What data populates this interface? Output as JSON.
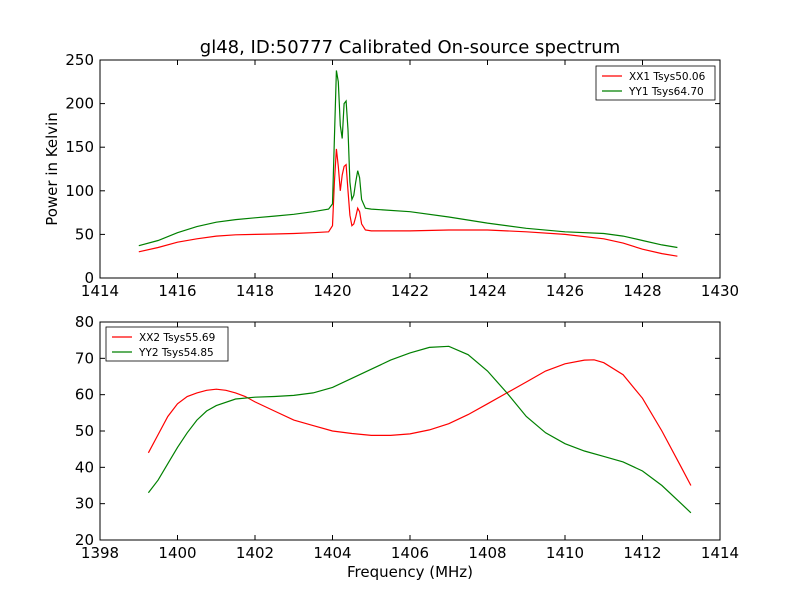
{
  "chart_data": [
    {
      "type": "line",
      "title": "gl48, ID:50777 Calibrated On-source spectrum",
      "ylabel": "Power in Kelvin",
      "xlabel": "",
      "xlim": [
        1414,
        1430
      ],
      "ylim": [
        0,
        250
      ],
      "xticks": [
        1414,
        1416,
        1418,
        1420,
        1422,
        1424,
        1426,
        1428,
        1430
      ],
      "yticks": [
        0,
        50,
        100,
        150,
        200,
        250
      ],
      "legend_position": "top-right",
      "series": [
        {
          "name": "XX1 Tsys50.06",
          "color": "#ff0000",
          "points": [
            [
              1415.0,
              30
            ],
            [
              1415.5,
              35
            ],
            [
              1416.0,
              41
            ],
            [
              1416.5,
              45
            ],
            [
              1417.0,
              48
            ],
            [
              1417.5,
              49.5
            ],
            [
              1418.0,
              50
            ],
            [
              1418.5,
              50.5
            ],
            [
              1419.0,
              51
            ],
            [
              1419.5,
              52
            ],
            [
              1419.9,
              53
            ],
            [
              1420.0,
              60
            ],
            [
              1420.05,
              110
            ],
            [
              1420.1,
              148
            ],
            [
              1420.15,
              128
            ],
            [
              1420.2,
              100
            ],
            [
              1420.25,
              118
            ],
            [
              1420.3,
              128
            ],
            [
              1420.35,
              130
            ],
            [
              1420.4,
              100
            ],
            [
              1420.45,
              72
            ],
            [
              1420.5,
              60
            ],
            [
              1420.55,
              62
            ],
            [
              1420.6,
              70
            ],
            [
              1420.65,
              80
            ],
            [
              1420.7,
              76
            ],
            [
              1420.75,
              62
            ],
            [
              1420.85,
              55
            ],
            [
              1421.0,
              54
            ],
            [
              1422.0,
              54
            ],
            [
              1423.0,
              55
            ],
            [
              1424.0,
              55
            ],
            [
              1425.0,
              53
            ],
            [
              1426.0,
              50
            ],
            [
              1427.0,
              45
            ],
            [
              1427.5,
              40
            ],
            [
              1428.0,
              33
            ],
            [
              1428.5,
              28
            ],
            [
              1428.9,
              25
            ]
          ]
        },
        {
          "name": "YY1 Tsys64.70",
          "color": "#008000",
          "points": [
            [
              1415.0,
              37
            ],
            [
              1415.5,
              43
            ],
            [
              1416.0,
              52
            ],
            [
              1416.5,
              59
            ],
            [
              1417.0,
              64
            ],
            [
              1417.5,
              67
            ],
            [
              1418.0,
              69
            ],
            [
              1418.5,
              71
            ],
            [
              1419.0,
              73
            ],
            [
              1419.5,
              76
            ],
            [
              1419.9,
              79
            ],
            [
              1420.0,
              85
            ],
            [
              1420.05,
              160
            ],
            [
              1420.1,
              238
            ],
            [
              1420.15,
              225
            ],
            [
              1420.2,
              175
            ],
            [
              1420.25,
              160
            ],
            [
              1420.3,
              200
            ],
            [
              1420.35,
              203
            ],
            [
              1420.4,
              170
            ],
            [
              1420.45,
              110
            ],
            [
              1420.5,
              90
            ],
            [
              1420.55,
              95
            ],
            [
              1420.6,
              110
            ],
            [
              1420.65,
              123
            ],
            [
              1420.7,
              115
            ],
            [
              1420.75,
              90
            ],
            [
              1420.85,
              80
            ],
            [
              1421.0,
              79
            ],
            [
              1422.0,
              76
            ],
            [
              1423.0,
              70
            ],
            [
              1424.0,
              63
            ],
            [
              1425.0,
              57
            ],
            [
              1426.0,
              53
            ],
            [
              1427.0,
              51
            ],
            [
              1427.5,
              48
            ],
            [
              1428.0,
              43
            ],
            [
              1428.5,
              38
            ],
            [
              1428.9,
              35
            ]
          ]
        }
      ]
    },
    {
      "type": "line",
      "title": "",
      "ylabel": "",
      "xlabel": "Frequency (MHz)",
      "xlim": [
        1398,
        1414
      ],
      "ylim": [
        20,
        80
      ],
      "xticks": [
        1398,
        1400,
        1402,
        1404,
        1406,
        1408,
        1410,
        1412,
        1414
      ],
      "yticks": [
        20,
        30,
        40,
        50,
        60,
        70,
        80
      ],
      "legend_position": "top-left",
      "series": [
        {
          "name": "XX2 Tsys55.69",
          "color": "#ff0000",
          "points": [
            [
              1399.25,
              44
            ],
            [
              1399.5,
              49
            ],
            [
              1399.75,
              54
            ],
            [
              1400.0,
              57.5
            ],
            [
              1400.25,
              59.5
            ],
            [
              1400.5,
              60.5
            ],
            [
              1400.75,
              61.2
            ],
            [
              1401.0,
              61.5
            ],
            [
              1401.25,
              61.2
            ],
            [
              1401.5,
              60.5
            ],
            [
              1401.75,
              59.5
            ],
            [
              1402.0,
              58
            ],
            [
              1402.5,
              55.5
            ],
            [
              1403.0,
              53
            ],
            [
              1403.5,
              51.5
            ],
            [
              1404.0,
              50
            ],
            [
              1404.5,
              49.3
            ],
            [
              1405.0,
              48.8
            ],
            [
              1405.5,
              48.8
            ],
            [
              1406.0,
              49.2
            ],
            [
              1406.5,
              50.3
            ],
            [
              1407.0,
              52
            ],
            [
              1407.5,
              54.5
            ],
            [
              1408.0,
              57.5
            ],
            [
              1408.5,
              60.5
            ],
            [
              1409.0,
              63.5
            ],
            [
              1409.5,
              66.5
            ],
            [
              1410.0,
              68.5
            ],
            [
              1410.5,
              69.5
            ],
            [
              1410.75,
              69.6
            ],
            [
              1411.0,
              68.8
            ],
            [
              1411.5,
              65.5
            ],
            [
              1412.0,
              59
            ],
            [
              1412.5,
              50
            ],
            [
              1413.0,
              40
            ],
            [
              1413.25,
              35
            ]
          ]
        },
        {
          "name": "YY2 Tsys54.85",
          "color": "#008000",
          "points": [
            [
              1399.25,
              33
            ],
            [
              1399.5,
              36.5
            ],
            [
              1399.75,
              41
            ],
            [
              1400.0,
              45.5
            ],
            [
              1400.25,
              49.5
            ],
            [
              1400.5,
              53
            ],
            [
              1400.75,
              55.5
            ],
            [
              1401.0,
              57
            ],
            [
              1401.5,
              58.8
            ],
            [
              1402.0,
              59.3
            ],
            [
              1402.5,
              59.5
            ],
            [
              1403.0,
              59.8
            ],
            [
              1403.5,
              60.5
            ],
            [
              1404.0,
              62
            ],
            [
              1404.5,
              64.5
            ],
            [
              1405.0,
              67
            ],
            [
              1405.5,
              69.5
            ],
            [
              1406.0,
              71.5
            ],
            [
              1406.5,
              73
            ],
            [
              1407.0,
              73.3
            ],
            [
              1407.5,
              71
            ],
            [
              1408.0,
              66.5
            ],
            [
              1408.5,
              60.5
            ],
            [
              1409.0,
              54
            ],
            [
              1409.5,
              49.5
            ],
            [
              1410.0,
              46.5
            ],
            [
              1410.5,
              44.5
            ],
            [
              1411.0,
              43
            ],
            [
              1411.5,
              41.5
            ],
            [
              1412.0,
              39
            ],
            [
              1412.5,
              35
            ],
            [
              1413.0,
              30
            ],
            [
              1413.25,
              27.5
            ]
          ]
        }
      ]
    }
  ]
}
